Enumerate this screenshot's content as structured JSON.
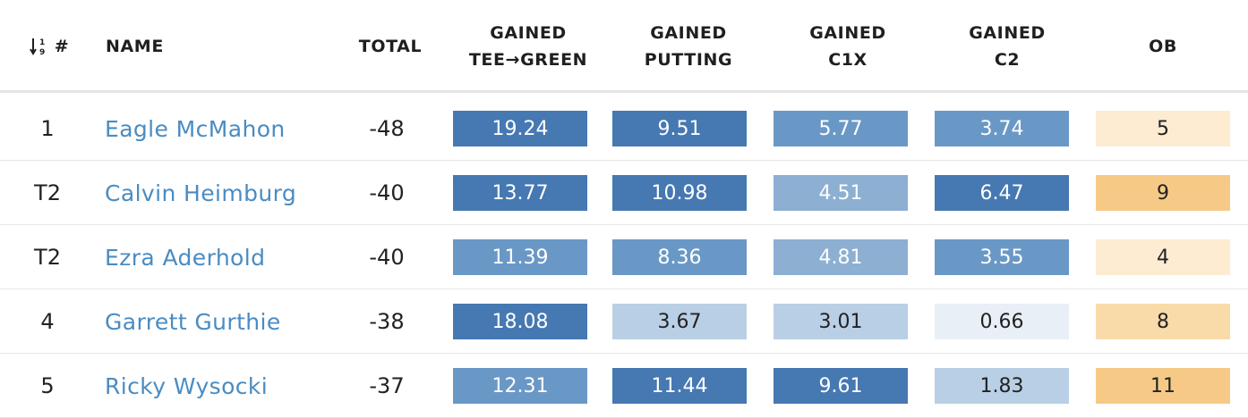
{
  "columns": {
    "rank": "#",
    "name": "NAME",
    "total": "TOTAL",
    "g1": [
      "GAINED",
      "TEE→GREEN"
    ],
    "g2": [
      "GAINED",
      "PUTTING"
    ],
    "g3": [
      "GAINED",
      "C1X"
    ],
    "g4": [
      "GAINED",
      "C2"
    ],
    "ob": "OB"
  },
  "sort_icon": "sort-numeric-ascending-icon",
  "colors": {
    "link": "#4a8cc2",
    "divider": "#e6e6e6",
    "blue_scale": [
      "#e8eff6",
      "#b9cfe5",
      "#8cafd2",
      "#6a98c6",
      "#4678b2"
    ],
    "orange_scale": [
      "#fdecd2",
      "#f9dba9",
      "#f6ca86"
    ]
  },
  "rows": [
    {
      "rank": "1",
      "name": "Eagle McMahon",
      "total": "-48",
      "g1": {
        "v": "19.24",
        "s": 4
      },
      "g2": {
        "v": "9.51",
        "s": 4
      },
      "g3": {
        "v": "5.77",
        "s": 3
      },
      "g4": {
        "v": "3.74",
        "s": 3
      },
      "ob": {
        "v": "5",
        "s": 0
      }
    },
    {
      "rank": "T2",
      "name": "Calvin Heimburg",
      "total": "-40",
      "g1": {
        "v": "13.77",
        "s": 4
      },
      "g2": {
        "v": "10.98",
        "s": 4
      },
      "g3": {
        "v": "4.51",
        "s": 2
      },
      "g4": {
        "v": "6.47",
        "s": 4
      },
      "ob": {
        "v": "9",
        "s": 2
      }
    },
    {
      "rank": "T2",
      "name": "Ezra Aderhold",
      "total": "-40",
      "g1": {
        "v": "11.39",
        "s": 3
      },
      "g2": {
        "v": "8.36",
        "s": 3
      },
      "g3": {
        "v": "4.81",
        "s": 2
      },
      "g4": {
        "v": "3.55",
        "s": 3
      },
      "ob": {
        "v": "4",
        "s": 0
      }
    },
    {
      "rank": "4",
      "name": "Garrett Gurthie",
      "total": "-38",
      "g1": {
        "v": "18.08",
        "s": 4
      },
      "g2": {
        "v": "3.67",
        "s": 1
      },
      "g3": {
        "v": "3.01",
        "s": 1
      },
      "g4": {
        "v": "0.66",
        "s": 0
      },
      "ob": {
        "v": "8",
        "s": 1
      }
    },
    {
      "rank": "5",
      "name": "Ricky Wysocki",
      "total": "-37",
      "g1": {
        "v": "12.31",
        "s": 3
      },
      "g2": {
        "v": "11.44",
        "s": 4
      },
      "g3": {
        "v": "9.61",
        "s": 4
      },
      "g4": {
        "v": "1.83",
        "s": 1
      },
      "ob": {
        "v": "11",
        "s": 2
      }
    }
  ]
}
